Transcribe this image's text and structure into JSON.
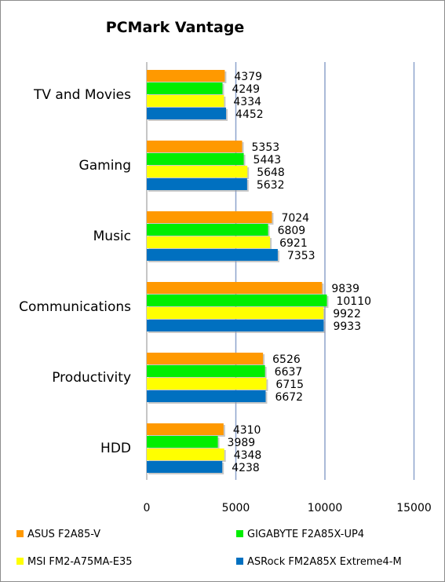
{
  "chart_data": {
    "type": "bar",
    "orientation": "horizontal",
    "title": "PCMark Vantage",
    "xlabel": "",
    "ylabel": "",
    "xlim": [
      0,
      15000
    ],
    "x_ticks": [
      "0",
      "5000",
      "10000",
      "15000"
    ],
    "grid": "vertical",
    "legend_position": "bottom",
    "categories": [
      "TV and Movies",
      "Gaming",
      "Music",
      "Communications",
      "Productivity",
      "HDD"
    ],
    "series": [
      {
        "name": "ASUS F2A85-V",
        "color": "#ff9900",
        "values": [
          4379,
          5353,
          7024,
          9839,
          6526,
          4310
        ]
      },
      {
        "name": "GIGABYTE F2A85X-UP4",
        "color": "#00ee00",
        "values": [
          4249,
          5443,
          6809,
          10110,
          6637,
          3989
        ]
      },
      {
        "name": "MSI FM2-A75MA-E35",
        "color": "#ffff00",
        "values": [
          4334,
          5648,
          6921,
          9922,
          6715,
          4348
        ]
      },
      {
        "name": "ASRock FM2A85X Extreme4-M",
        "color": "#0070c0",
        "values": [
          4452,
          5632,
          7353,
          9933,
          6672,
          4238
        ]
      }
    ]
  }
}
